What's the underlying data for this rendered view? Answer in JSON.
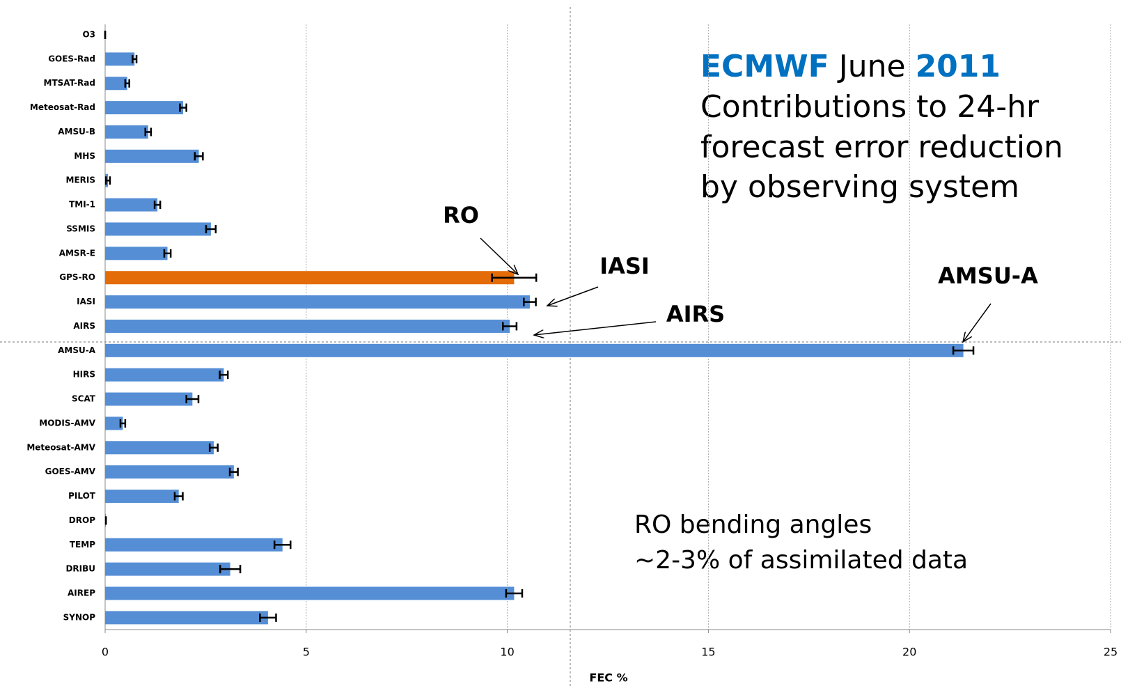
{
  "chart_data": {
    "type": "hbar",
    "title_parts": [
      "ECMWF",
      "June",
      "2011"
    ],
    "subtitle_lines": [
      "Contributions to 24-hr",
      "forecast error reduction",
      "by observing system"
    ],
    "notes": [
      "RO bending angles",
      "~2-3% of assimilated data"
    ],
    "callouts": [
      "RO",
      "IASI",
      "AIRS",
      "AMSU-A"
    ],
    "x_label": "FEC %",
    "categories": [
      "O3",
      "GOES-Rad",
      "MTSAT-Rad",
      "Meteosat-Rad",
      "AMSU-B",
      "MHS",
      "MERIS",
      "TMI-1",
      "SSMIS",
      "AMSR-E",
      "GPS-RO",
      "IASI",
      "AIRS",
      "AMSU-A",
      "HIRS",
      "SCAT",
      "MODIS-AMV",
      "Meteosat-AMV",
      "GOES-AMV",
      "PILOT",
      "DROP",
      "TEMP",
      "DRIBU",
      "AIREP",
      "SYNOP"
    ],
    "values": [
      0,
      0.73,
      0.55,
      1.94,
      1.07,
      2.33,
      0.07,
      1.3,
      2.63,
      1.55,
      10.17,
      10.56,
      10.06,
      21.34,
      2.95,
      2.17,
      0.44,
      2.7,
      3.2,
      1.83,
      0.02,
      4.41,
      3.11,
      10.17,
      4.05
    ],
    "errors": [
      0,
      0.05,
      0.05,
      0.08,
      0.07,
      0.1,
      0.05,
      0.07,
      0.12,
      0.08,
      0.55,
      0.15,
      0.17,
      0.25,
      0.1,
      0.15,
      0.06,
      0.1,
      0.1,
      0.1,
      0,
      0.2,
      0.25,
      0.2,
      0.2
    ],
    "colors": [
      "#558ed5",
      "#558ed5",
      "#558ed5",
      "#558ed5",
      "#558ed5",
      "#558ed5",
      "#558ed5",
      "#558ed5",
      "#558ed5",
      "#558ed5",
      "#e36c09",
      "#558ed5",
      "#558ed5",
      "#558ed5",
      "#558ed5",
      "#558ed5",
      "#558ed5",
      "#558ed5",
      "#558ed5",
      "#558ed5",
      "#558ed5",
      "#558ed5",
      "#558ed5",
      "#558ed5",
      "#558ed5"
    ],
    "xlim": [
      0,
      25
    ],
    "xticks": [
      0,
      5,
      10,
      15,
      20,
      25
    ],
    "grid": true
  }
}
